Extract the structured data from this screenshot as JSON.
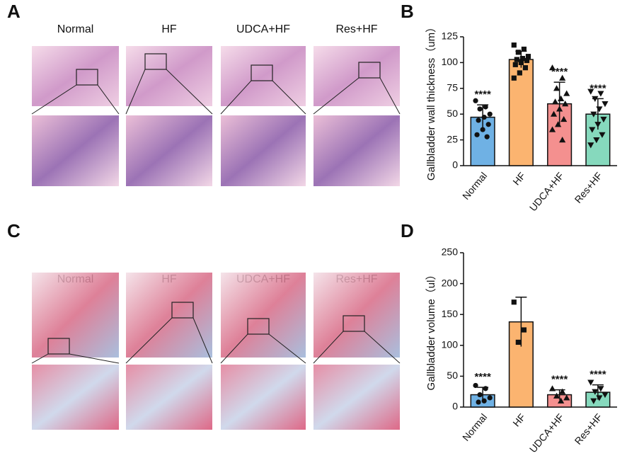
{
  "figure_labels": [
    "A",
    "B",
    "C",
    "D"
  ],
  "image_panels": [
    {
      "columns": [
        "Normal",
        "HF",
        "UDCA+HF",
        "Res+HF"
      ]
    },
    {
      "columns": [
        "Normal",
        "HF",
        "UDCA+HF",
        "Res+HF"
      ]
    }
  ],
  "chart_data": [
    {
      "type": "bar",
      "ylabel": "Gallbladder wall thickness（um）",
      "categories": [
        "Normal",
        "HF",
        "UDCA+HF",
        "Res+HF"
      ],
      "colors": [
        "#6fb1e4",
        "#fbb470",
        "#f4908f",
        "#86d9bd"
      ],
      "values": [
        47,
        103,
        60,
        50
      ],
      "errors": [
        12,
        8,
        21,
        15
      ],
      "points": [
        [
          63,
          57,
          55,
          50,
          47,
          44,
          40,
          35,
          30,
          28
        ],
        [
          117,
          113,
          110,
          106,
          104,
          103,
          102,
          100,
          98,
          95,
          90,
          85
        ],
        [
          95,
          85,
          75,
          70,
          65,
          62,
          60,
          55,
          50,
          45,
          40,
          35,
          25
        ],
        [
          72,
          70,
          65,
          60,
          55,
          50,
          45,
          40,
          35,
          30,
          25,
          20
        ]
      ],
      "significance": [
        "****",
        null,
        "****",
        "****"
      ],
      "ylim": [
        0,
        125
      ],
      "yticks": [
        0,
        25,
        50,
        75,
        100,
        125
      ]
    },
    {
      "type": "bar",
      "ylabel": "Gallbladder volume（ul）",
      "categories": [
        "Normal",
        "HF",
        "UDCA+HF",
        "Res+HF"
      ],
      "colors": [
        "#6fb1e4",
        "#fbb470",
        "#f4908f",
        "#86d9bd"
      ],
      "values": [
        20,
        138,
        20,
        24
      ],
      "errors": [
        12,
        40,
        8,
        12
      ],
      "points": [
        [
          35,
          30,
          20,
          15,
          10,
          8
        ],
        [
          170,
          125,
          105
        ],
        [
          30,
          25,
          18,
          15,
          10
        ],
        [
          40,
          30,
          25,
          20,
          15,
          10
        ]
      ],
      "significance": [
        "****",
        null,
        "****",
        "****"
      ],
      "ylim": [
        0,
        250
      ],
      "yticks": [
        0,
        50,
        100,
        150,
        200,
        250
      ]
    }
  ]
}
